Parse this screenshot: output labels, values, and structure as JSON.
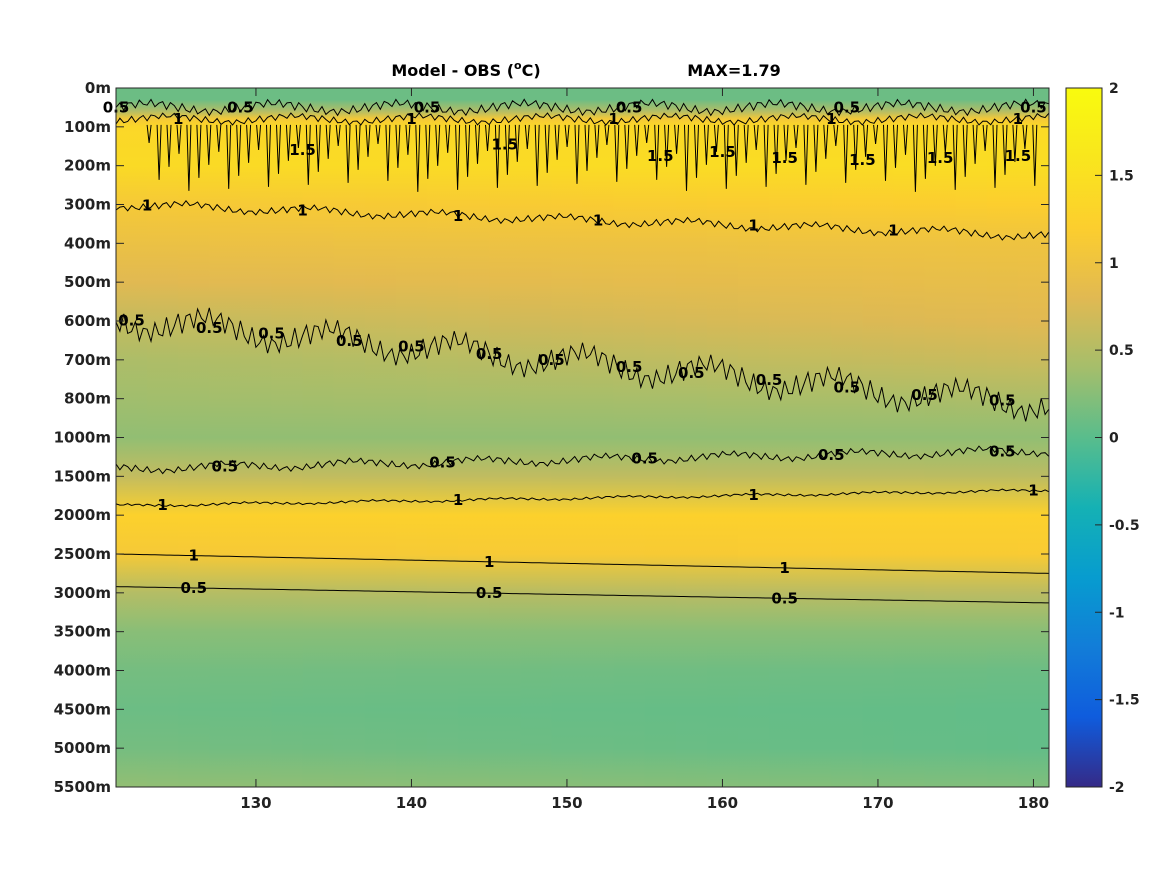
{
  "chart_data": {
    "type": "heatmap",
    "title": "Model - OBS (",
    "title_unit_sup": "o",
    "title_unit": "C)",
    "max_label": "MAX=1.79",
    "x": {
      "range": [
        121,
        181
      ],
      "ticks": [
        130,
        140,
        150,
        160,
        170,
        180
      ],
      "tick_labels": [
        "130",
        "140",
        "150",
        "160",
        "170",
        "180"
      ]
    },
    "y": {
      "reversed": true,
      "ticks": [
        0,
        100,
        200,
        300,
        400,
        500,
        600,
        700,
        800,
        1000,
        1500,
        2000,
        2500,
        3000,
        3500,
        4000,
        4500,
        5000,
        5500
      ],
      "tick_labels": [
        "0m",
        "100m",
        "200m",
        "300m",
        "400m",
        "500m",
        "600m",
        "700m",
        "800m",
        "1000m",
        "1500m",
        "2000m",
        "2500m",
        "3000m",
        "3500m",
        "4000m",
        "4500m",
        "5000m",
        "5500m"
      ]
    },
    "colorbar": {
      "range": [
        -2,
        2
      ],
      "ticks": [
        2,
        1.5,
        1,
        0.5,
        0,
        -0.5,
        -1,
        -1.5,
        -2
      ],
      "tick_labels": [
        "2",
        "1.5",
        "1",
        "0.5",
        "0",
        "-0.5",
        "-1",
        "-1.5",
        "-2"
      ],
      "colormap": "parula"
    },
    "depth_profile_west": [
      [
        0,
        0.1
      ],
      [
        30,
        0.1
      ],
      [
        60,
        0.5
      ],
      [
        80,
        1.1
      ],
      [
        100,
        1.35
      ],
      [
        200,
        1.4
      ],
      [
        300,
        1.1
      ],
      [
        400,
        0.95
      ],
      [
        500,
        0.8
      ],
      [
        600,
        0.6
      ],
      [
        700,
        0.45
      ],
      [
        800,
        0.38
      ],
      [
        1000,
        0.3
      ],
      [
        1500,
        0.6
      ],
      [
        2000,
        1.25
      ],
      [
        2500,
        1.1
      ],
      [
        3000,
        0.5
      ],
      [
        3500,
        0.25
      ],
      [
        4000,
        0.15
      ],
      [
        4500,
        0.1
      ],
      [
        5000,
        0.15
      ],
      [
        5500,
        0.3
      ]
    ],
    "depth_profile_east": [
      [
        0,
        0.1
      ],
      [
        30,
        0.1
      ],
      [
        60,
        0.5
      ],
      [
        80,
        1.1
      ],
      [
        100,
        1.4
      ],
      [
        200,
        1.45
      ],
      [
        300,
        1.2
      ],
      [
        400,
        1.0
      ],
      [
        500,
        0.9
      ],
      [
        600,
        0.8
      ],
      [
        700,
        0.65
      ],
      [
        800,
        0.45
      ],
      [
        1000,
        0.3
      ],
      [
        1500,
        0.55
      ],
      [
        2000,
        1.25
      ],
      [
        2500,
        1.15
      ],
      [
        3000,
        0.55
      ],
      [
        3500,
        0.25
      ],
      [
        4000,
        0.1
      ],
      [
        4500,
        0.05
      ],
      [
        5000,
        0.05
      ],
      [
        5500,
        0.2
      ]
    ],
    "contours": [
      {
        "level": "0.5",
        "x": [
          121,
          181
        ],
        "depth": [
          50,
          50
        ],
        "wiggle": 8,
        "labels": [
          [
            121,
            0.5
          ],
          [
            129,
            0.5
          ],
          [
            141,
            0.5
          ],
          [
            154,
            0.5
          ],
          [
            168,
            0.5
          ],
          [
            180,
            0.5
          ]
        ]
      },
      {
        "level": "1",
        "x": [
          121,
          181
        ],
        "depth": [
          80,
          80
        ],
        "wiggle": 6,
        "labels": [
          [
            125,
            1
          ],
          [
            140,
            1
          ],
          [
            153,
            1
          ],
          [
            167,
            1
          ],
          [
            179,
            1
          ]
        ]
      },
      {
        "level": "1",
        "x": [
          121,
          181
        ],
        "depth": [
          300,
          380
        ],
        "wiggle": 6,
        "labels": [
          [
            123,
            1
          ],
          [
            133,
            1
          ],
          [
            143,
            1
          ],
          [
            152,
            1
          ],
          [
            162,
            1
          ],
          [
            171,
            1
          ]
        ]
      },
      {
        "level": "0.5",
        "x": [
          121,
          181
        ],
        "depth": [
          595,
          820
        ],
        "wiggle": 20,
        "labels": [
          [
            122,
            0.5
          ],
          [
            127,
            0.5
          ],
          [
            131,
            0.5
          ],
          [
            136,
            0.5
          ],
          [
            140,
            0.5
          ],
          [
            145,
            0.5
          ],
          [
            149,
            0.5
          ],
          [
            154,
            0.5
          ],
          [
            158,
            0.5
          ],
          [
            163,
            0.5
          ],
          [
            168,
            0.5
          ],
          [
            173,
            0.5
          ],
          [
            178,
            0.5
          ]
        ]
      },
      {
        "level": "0.5",
        "x": [
          121,
          181
        ],
        "depth": [
          1400,
          1170
        ],
        "wiggle": 6,
        "labels": [
          [
            128,
            0.5
          ],
          [
            142,
            0.5
          ],
          [
            155,
            0.5
          ],
          [
            167,
            0.5
          ],
          [
            178,
            0.5
          ]
        ]
      },
      {
        "level": "1",
        "x": [
          121,
          181
        ],
        "depth": [
          1880,
          1680
        ],
        "wiggle": 2,
        "labels": [
          [
            124,
            1
          ],
          [
            143,
            1
          ],
          [
            162,
            1
          ],
          [
            180,
            1
          ]
        ]
      },
      {
        "level": "1",
        "x": [
          121,
          181
        ],
        "depth": [
          2500,
          2750
        ],
        "wiggle": 0,
        "labels": [
          [
            126,
            1
          ],
          [
            145,
            1
          ],
          [
            164,
            1
          ]
        ]
      },
      {
        "level": "0.5",
        "x": [
          121,
          181
        ],
        "depth": [
          2920,
          3130
        ],
        "wiggle": 0,
        "labels": [
          [
            126,
            0.5
          ],
          [
            145,
            0.5
          ],
          [
            164,
            0.5
          ]
        ]
      }
    ],
    "mixed_layer_labels": [
      {
        "text": "1.5",
        "x": 133,
        "depth": 160
      },
      {
        "text": "1.5",
        "x": 146,
        "depth": 145
      },
      {
        "text": "1.5",
        "x": 156,
        "depth": 175
      },
      {
        "text": "1.5",
        "x": 160,
        "depth": 165
      },
      {
        "text": "1.5",
        "x": 164,
        "depth": 180
      },
      {
        "text": "1.5",
        "x": 169,
        "depth": 185
      },
      {
        "text": "1.5",
        "x": 174,
        "depth": 180
      },
      {
        "text": "1.5",
        "x": 179,
        "depth": 175
      }
    ]
  }
}
